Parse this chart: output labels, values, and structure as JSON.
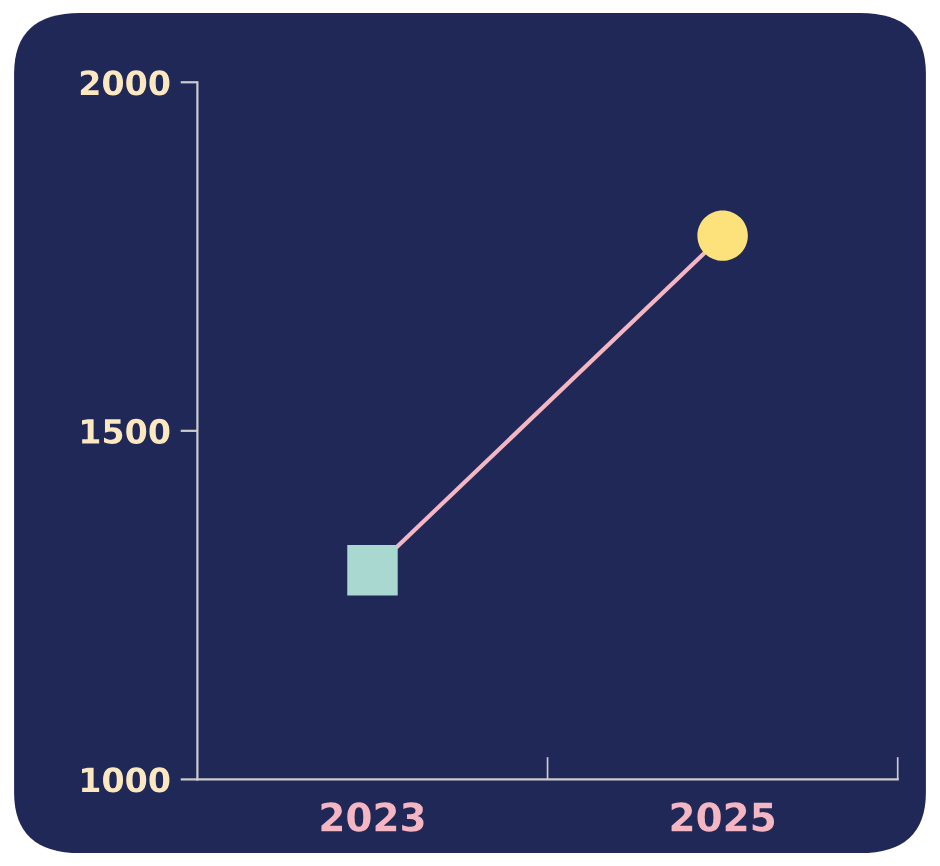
{
  "chart_data": {
    "type": "line",
    "categories": [
      "2023",
      "2025"
    ],
    "series": [
      {
        "color": "#f4b6c2",
        "colors": [
          "#a8d8cf",
          "#fde17a"
        ],
        "marker": [
          "square",
          "circle"
        ],
        "values": [
          1300,
          1780
        ]
      }
    ],
    "ylim": [
      1000,
      2000
    ],
    "yticks": [
      1000,
      1500,
      2000
    ]
  }
}
